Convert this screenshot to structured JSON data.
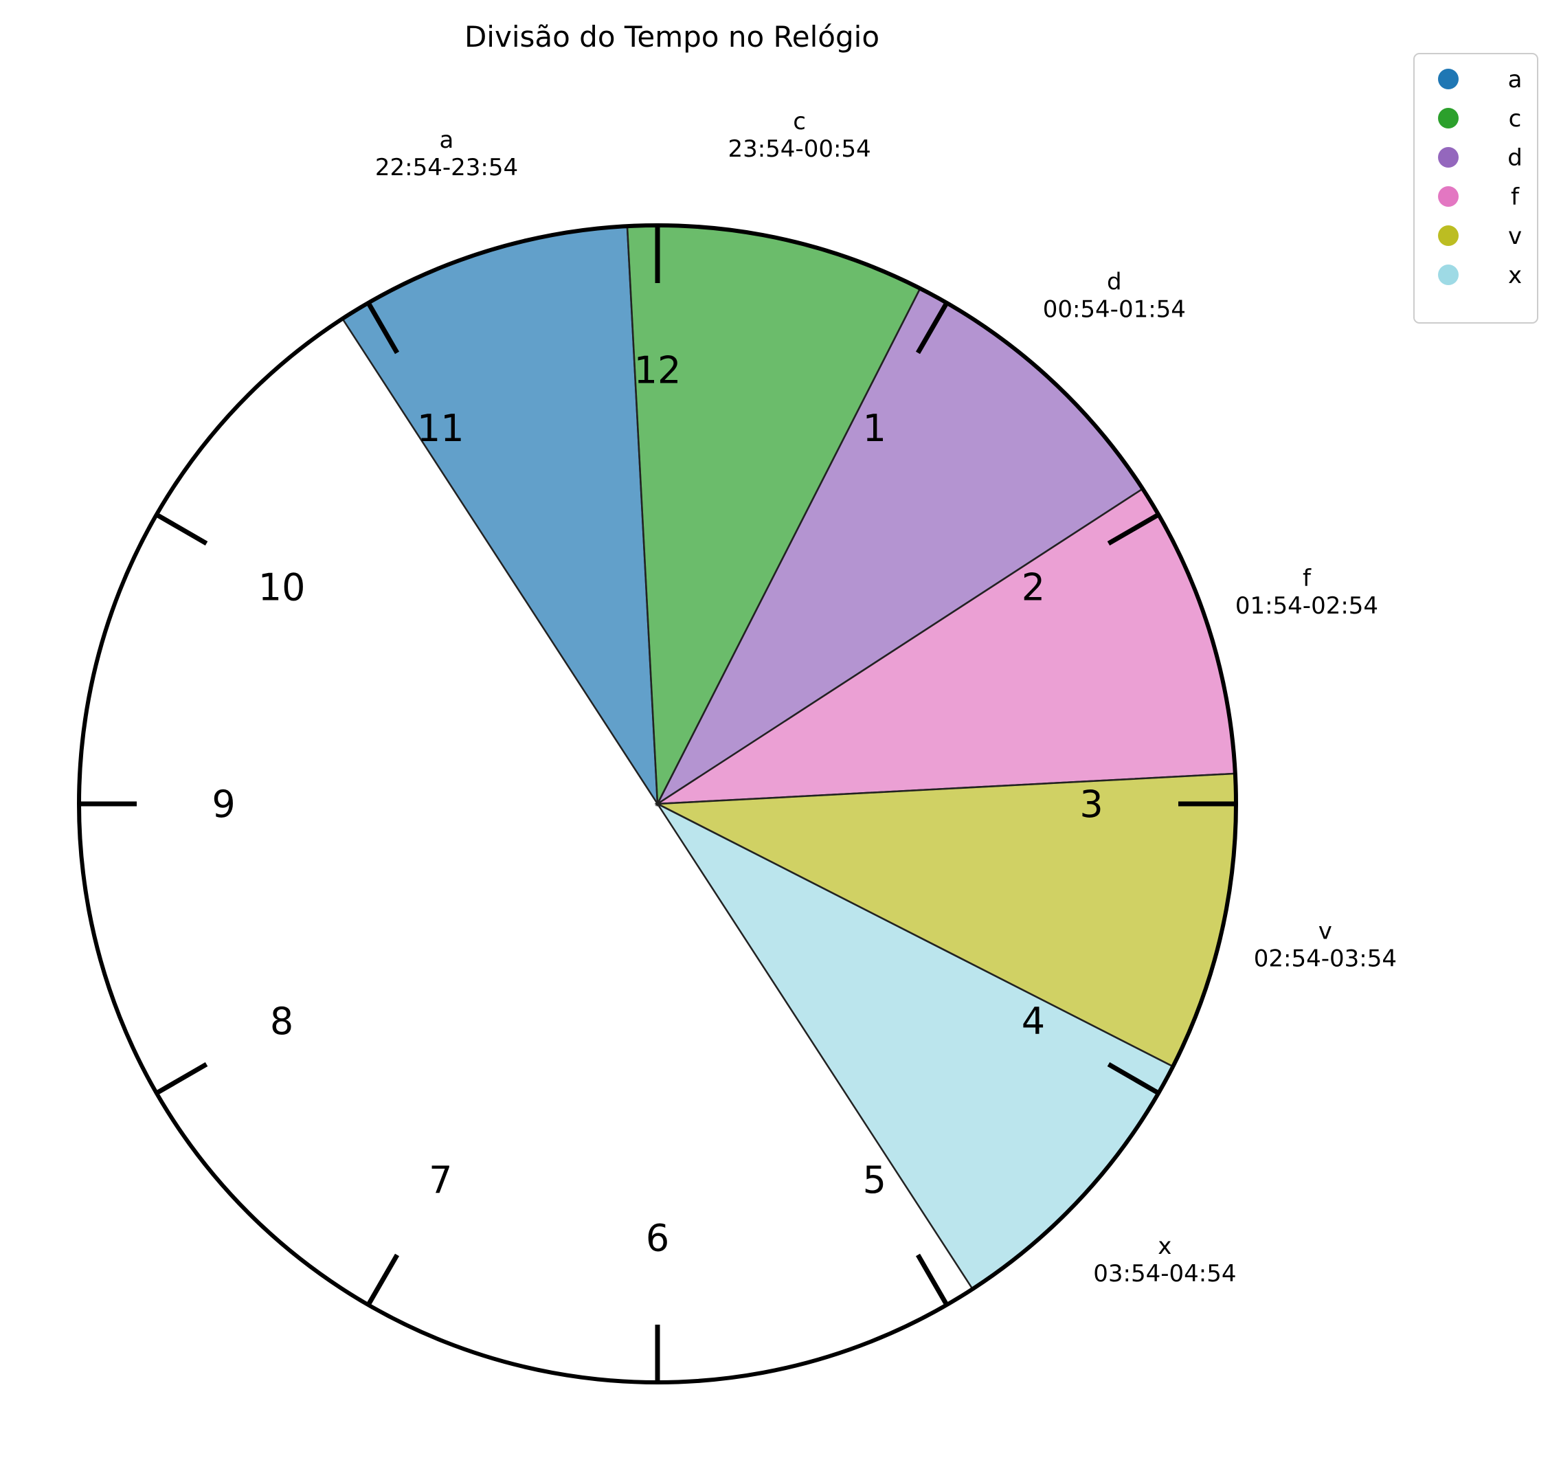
{
  "chart_data": {
    "type": "pie",
    "title": "Divisão do Tempo no Relógio",
    "center_marker": "clock",
    "segments": [
      {
        "name": "a",
        "range": "22:54-23:54",
        "start_hour": 22.9,
        "end_hour": 23.9,
        "color": "#1f77b4"
      },
      {
        "name": "c",
        "range": "23:54-00:54",
        "start_hour": 23.9,
        "end_hour": 24.9,
        "color": "#2ca02c"
      },
      {
        "name": "d",
        "range": "00:54-01:54",
        "start_hour": 0.9,
        "end_hour": 1.9,
        "color": "#9467bd"
      },
      {
        "name": "f",
        "range": "01:54-02:54",
        "start_hour": 1.9,
        "end_hour": 2.9,
        "color": "#e377c2"
      },
      {
        "name": "v",
        "range": "02:54-03:54",
        "start_hour": 2.9,
        "end_hour": 3.9,
        "color": "#bcbd22"
      },
      {
        "name": "x",
        "range": "03:54-04:54",
        "start_hour": 3.9,
        "end_hour": 4.9,
        "color": "#9edae5"
      }
    ],
    "hour_numbers": [
      "12",
      "1",
      "2",
      "3",
      "4",
      "5",
      "6",
      "7",
      "8",
      "9",
      "10",
      "11"
    ],
    "legend": {
      "placement": "top-right",
      "entries": [
        "a",
        "c",
        "d",
        "f",
        "v",
        "x"
      ]
    }
  }
}
